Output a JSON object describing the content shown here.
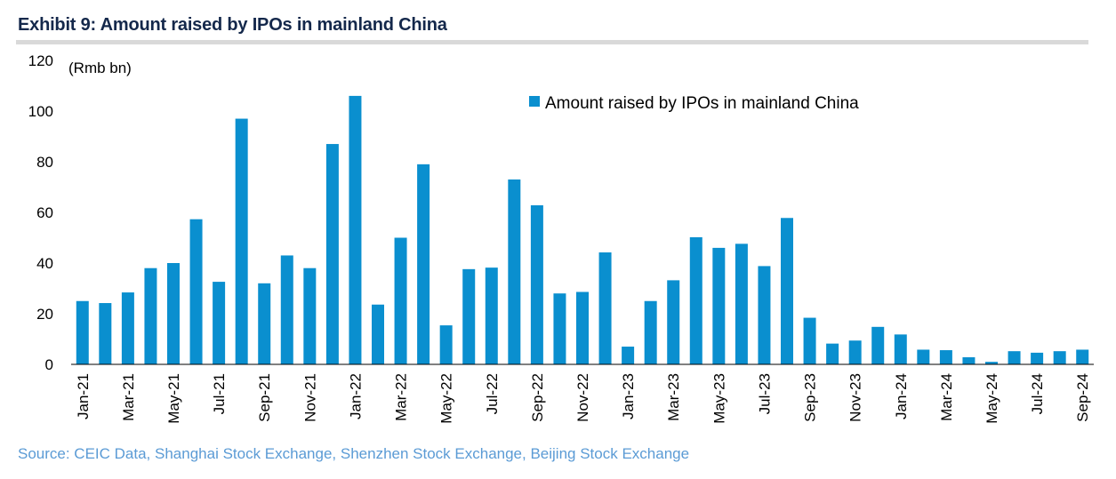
{
  "exhibit_title": "Exhibit 9: Amount raised by IPOs in mainland China",
  "source": "Source: CEIC Data, Shanghai Stock Exchange, Shenzhen Stock Exchange, Beijing Stock Exchange",
  "chart_data": {
    "type": "bar",
    "unit_label": "(Rmb bn)",
    "ylim": [
      0,
      120
    ],
    "yticks": [
      0,
      20,
      40,
      60,
      80,
      100,
      120
    ],
    "legend_position": "top-right",
    "grid": false,
    "bar_color": "#0a8fcf",
    "categories": [
      "Jan-21",
      "Feb-21",
      "Mar-21",
      "Apr-21",
      "May-21",
      "Jun-21",
      "Jul-21",
      "Aug-21",
      "Sep-21",
      "Oct-21",
      "Nov-21",
      "Dec-21",
      "Jan-22",
      "Feb-22",
      "Mar-22",
      "Apr-22",
      "May-22",
      "Jun-22",
      "Jul-22",
      "Aug-22",
      "Sep-22",
      "Oct-22",
      "Nov-22",
      "Dec-22",
      "Jan-23",
      "Feb-23",
      "Mar-23",
      "Apr-23",
      "May-23",
      "Jun-23",
      "Jul-23",
      "Aug-23",
      "Sep-23",
      "Oct-23",
      "Nov-23",
      "Dec-23",
      "Jan-24",
      "Feb-24",
      "Mar-24",
      "Apr-24",
      "May-24",
      "Jun-24",
      "Jul-24",
      "Aug-24",
      "Sep-24"
    ],
    "tick_labels": [
      "Jan-21",
      "Mar-21",
      "May-21",
      "Jul-21",
      "Sep-21",
      "Nov-21",
      "Jan-22",
      "Mar-22",
      "May-22",
      "Jul-22",
      "Sep-22",
      "Nov-22",
      "Jan-23",
      "Mar-23",
      "May-23",
      "Jul-23",
      "Sep-23",
      "Nov-23",
      "Jan-24",
      "Mar-24",
      "May-24",
      "Jul-24",
      "Sep-24"
    ],
    "series": [
      {
        "name": "Amount raised by IPOs in mainland China",
        "values": [
          25,
          24.2,
          28.4,
          38,
          40,
          57.3,
          32.6,
          97,
          32,
          43,
          38,
          87,
          106,
          23.6,
          50,
          79,
          15.4,
          37.6,
          38.2,
          73,
          62.8,
          28,
          28.6,
          44.2,
          7,
          25,
          33.2,
          50.2,
          46,
          47.6,
          38.8,
          57.8,
          18.4,
          8.2,
          9.4,
          14.8,
          11.8,
          5.8,
          5.6,
          2.8,
          1,
          5.2,
          4.6,
          5.2,
          5.8
        ]
      }
    ]
  }
}
